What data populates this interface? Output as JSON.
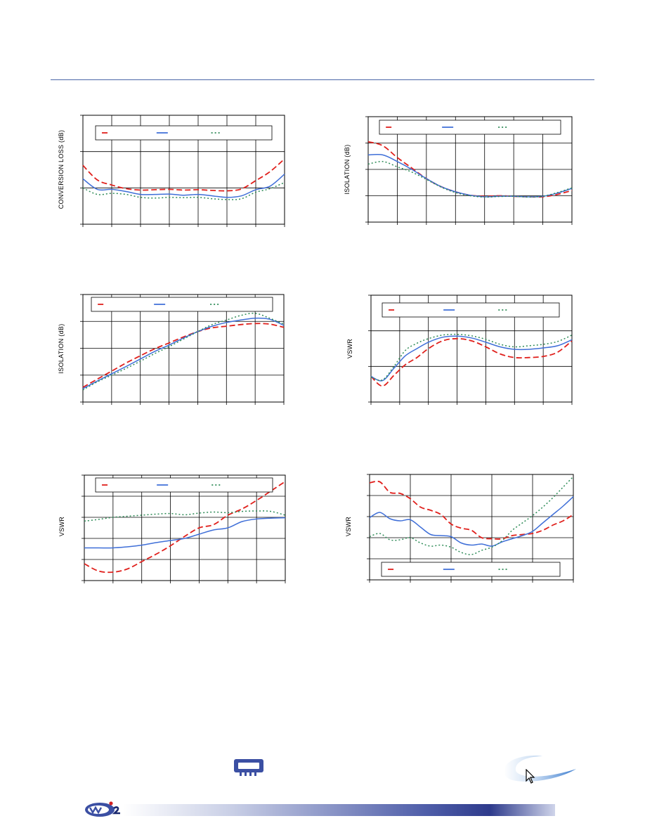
{
  "page": {
    "accent": "#4a66a8",
    "footer_band_color": "#2e3b8c",
    "logo_icon": "company-logo-icon",
    "chip_icon": "chip-package-icon",
    "swoosh_icon": "swoosh-logo-icon",
    "cursor_icon": "mouse-cursor-icon"
  },
  "chart_data": [
    {
      "type": "line",
      "ylabel": "CONVERSION LOSS (dB)",
      "grid": true,
      "legend_position": "top",
      "xlim": [
        0,
        7
      ],
      "ylim": [
        0,
        3
      ],
      "series": [
        {
          "color": "#e0201c",
          "dash": "8,4",
          "x": [
            0,
            0.5,
            1,
            1.5,
            2,
            2.5,
            3,
            3.5,
            4,
            4.5,
            5,
            5.5,
            6,
            6.5,
            7
          ],
          "y": [
            1.62,
            1.22,
            1.08,
            0.98,
            0.94,
            0.95,
            0.96,
            0.94,
            0.95,
            0.93,
            0.92,
            0.97,
            1.2,
            1.45,
            1.8
          ]
        },
        {
          "color": "#3f6fd8",
          "dash": "",
          "x": [
            0,
            0.5,
            1,
            1.5,
            2,
            2.5,
            3,
            3.5,
            4,
            4.5,
            5,
            5.5,
            6,
            6.5,
            7
          ],
          "y": [
            1.25,
            0.96,
            0.96,
            0.9,
            0.82,
            0.82,
            0.83,
            0.8,
            0.82,
            0.78,
            0.74,
            0.78,
            0.95,
            1.05,
            1.38
          ]
        },
        {
          "color": "#2e8b57",
          "dash": "2,3",
          "x": [
            0,
            0.5,
            1,
            1.5,
            2,
            2.5,
            3,
            3.5,
            4,
            4.5,
            5,
            5.5,
            6,
            6.5,
            7
          ],
          "y": [
            1.0,
            0.82,
            0.85,
            0.82,
            0.74,
            0.72,
            0.74,
            0.73,
            0.74,
            0.7,
            0.68,
            0.7,
            0.88,
            0.98,
            1.15
          ]
        }
      ]
    },
    {
      "type": "line",
      "ylabel": "ISOLATION (dB)",
      "grid": true,
      "legend_position": "top",
      "xlim": [
        0,
        7
      ],
      "ylim": [
        0,
        4
      ],
      "series": [
        {
          "color": "#e0201c",
          "dash": "8,4",
          "x": [
            0,
            0.5,
            1,
            1.5,
            2,
            2.5,
            3,
            3.5,
            4,
            4.5,
            5,
            5.5,
            6,
            6.5,
            7
          ],
          "y": [
            3.05,
            2.9,
            2.45,
            2.05,
            1.65,
            1.35,
            1.15,
            1.02,
            0.98,
            1.0,
            0.98,
            0.96,
            0.96,
            1.05,
            1.2
          ]
        },
        {
          "color": "#3f6fd8",
          "dash": "",
          "x": [
            0,
            0.5,
            1,
            1.5,
            2,
            2.5,
            3,
            3.5,
            4,
            4.5,
            5,
            5.5,
            6,
            6.5,
            7
          ],
          "y": [
            2.55,
            2.55,
            2.3,
            2.0,
            1.65,
            1.35,
            1.15,
            1.02,
            0.96,
            0.98,
            0.98,
            0.96,
            0.98,
            1.1,
            1.28
          ]
        },
        {
          "color": "#2e8b57",
          "dash": "2,3",
          "x": [
            0,
            0.5,
            1,
            1.5,
            2,
            2.5,
            3,
            3.5,
            4,
            4.5,
            5,
            5.5,
            6,
            6.5,
            7
          ],
          "y": [
            2.2,
            2.3,
            2.1,
            1.9,
            1.62,
            1.33,
            1.12,
            1.0,
            0.95,
            0.97,
            0.98,
            0.95,
            0.98,
            1.12,
            1.3
          ]
        }
      ]
    },
    {
      "type": "line",
      "ylabel": "ISOLATION (dB)",
      "grid": true,
      "legend_position": "top",
      "xlim": [
        0,
        7
      ],
      "ylim": [
        0,
        4
      ],
      "series": [
        {
          "color": "#e0201c",
          "dash": "8,4",
          "x": [
            0,
            0.5,
            1,
            1.5,
            2,
            2.5,
            3,
            3.5,
            4,
            4.5,
            5,
            5.5,
            6,
            6.5,
            7
          ],
          "y": [
            0.55,
            0.85,
            1.15,
            1.45,
            1.72,
            1.98,
            2.2,
            2.42,
            2.62,
            2.76,
            2.82,
            2.88,
            2.92,
            2.9,
            2.78
          ]
        },
        {
          "color": "#3f6fd8",
          "dash": "",
          "x": [
            0,
            0.5,
            1,
            1.5,
            2,
            2.5,
            3,
            3.5,
            4,
            4.5,
            5,
            5.5,
            6,
            6.5,
            7
          ],
          "y": [
            0.5,
            0.78,
            1.05,
            1.32,
            1.6,
            1.88,
            2.12,
            2.38,
            2.62,
            2.82,
            2.96,
            3.05,
            3.12,
            3.08,
            2.85
          ]
        },
        {
          "color": "#2e8b57",
          "dash": "2,3",
          "x": [
            0,
            0.5,
            1,
            1.5,
            2,
            2.5,
            3,
            3.5,
            4,
            4.5,
            5,
            5.5,
            6,
            6.5,
            7
          ],
          "y": [
            0.45,
            0.75,
            1.0,
            1.25,
            1.52,
            1.8,
            2.06,
            2.34,
            2.62,
            2.88,
            3.05,
            3.22,
            3.3,
            3.12,
            2.9
          ]
        }
      ]
    },
    {
      "type": "line",
      "ylabel": "VSWR",
      "grid": true,
      "legend_position": "top",
      "xlim": [
        0,
        7
      ],
      "ylim": [
        0,
        3
      ],
      "series": [
        {
          "color": "#e0201c",
          "dash": "8,4",
          "x": [
            0,
            0.4,
            0.8,
            1.2,
            1.6,
            2,
            2.5,
            3,
            3.5,
            4,
            4.5,
            5,
            5.5,
            6,
            6.5,
            7
          ],
          "y": [
            0.72,
            0.45,
            0.75,
            1.05,
            1.25,
            1.5,
            1.72,
            1.78,
            1.72,
            1.55,
            1.35,
            1.25,
            1.25,
            1.28,
            1.4,
            1.72
          ]
        },
        {
          "color": "#3f6fd8",
          "dash": "",
          "x": [
            0,
            0.4,
            0.8,
            1.2,
            1.6,
            2,
            2.5,
            3,
            3.5,
            4,
            4.5,
            5,
            5.5,
            6,
            6.5,
            7
          ],
          "y": [
            0.72,
            0.6,
            0.95,
            1.3,
            1.5,
            1.68,
            1.82,
            1.85,
            1.8,
            1.68,
            1.55,
            1.48,
            1.48,
            1.52,
            1.58,
            1.75
          ]
        },
        {
          "color": "#2e8b57",
          "dash": "2,3",
          "x": [
            0,
            0.4,
            0.8,
            1.2,
            1.6,
            2,
            2.5,
            3,
            3.5,
            4,
            4.5,
            5,
            5.5,
            6,
            6.5,
            7
          ],
          "y": [
            0.7,
            0.62,
            1.0,
            1.45,
            1.65,
            1.78,
            1.88,
            1.9,
            1.86,
            1.76,
            1.62,
            1.55,
            1.58,
            1.62,
            1.7,
            1.88
          ]
        }
      ]
    },
    {
      "type": "line",
      "ylabel": "VSWR",
      "grid": true,
      "legend_position": "top",
      "xlim": [
        0,
        7
      ],
      "ylim": [
        0,
        5
      ],
      "series": [
        {
          "color": "#e0201c",
          "dash": "8,4",
          "x": [
            0,
            0.5,
            1,
            1.5,
            2,
            2.5,
            3,
            3.5,
            4,
            4.5,
            5,
            5.5,
            6,
            6.5,
            7
          ],
          "y": [
            0.8,
            0.45,
            0.4,
            0.55,
            0.9,
            1.25,
            1.65,
            2.1,
            2.5,
            2.65,
            3.1,
            3.4,
            3.8,
            4.25,
            4.7
          ]
        },
        {
          "color": "#3f6fd8",
          "dash": "",
          "x": [
            0,
            0.5,
            1,
            1.5,
            2,
            2.5,
            3,
            3.5,
            4,
            4.5,
            5,
            5.5,
            6,
            6.5,
            7
          ],
          "y": [
            1.55,
            1.55,
            1.55,
            1.6,
            1.68,
            1.8,
            1.9,
            2.0,
            2.2,
            2.4,
            2.5,
            2.8,
            2.92,
            2.96,
            2.98
          ]
        },
        {
          "color": "#2e8b57",
          "dash": "2,3",
          "x": [
            0,
            0.5,
            1,
            1.5,
            2,
            2.5,
            3,
            3.5,
            4,
            4.5,
            5,
            5.5,
            6,
            6.5,
            7
          ],
          "y": [
            2.82,
            2.9,
            3.0,
            3.05,
            3.1,
            3.15,
            3.18,
            3.12,
            3.2,
            3.25,
            3.22,
            3.28,
            3.3,
            3.28,
            3.1
          ]
        }
      ]
    },
    {
      "type": "line",
      "ylabel": "VSWR",
      "grid": true,
      "legend_position": "bottom",
      "xlim": [
        0,
        5
      ],
      "ylim": [
        0,
        5
      ],
      "series": [
        {
          "color": "#e0201c",
          "dash": "8,4",
          "x": [
            0,
            0.25,
            0.5,
            0.75,
            1,
            1.25,
            1.5,
            1.75,
            2,
            2.25,
            2.5,
            2.75,
            3,
            3.25,
            3.5,
            3.75,
            4,
            4.25,
            4.5,
            4.75,
            5
          ],
          "y": [
            4.6,
            4.65,
            4.15,
            4.1,
            3.85,
            3.45,
            3.3,
            3.1,
            2.65,
            2.45,
            2.35,
            2.0,
            1.95,
            1.95,
            2.1,
            2.15,
            2.2,
            2.35,
            2.6,
            2.8,
            3.1
          ]
        },
        {
          "color": "#3f6fd8",
          "dash": "",
          "x": [
            0,
            0.25,
            0.5,
            0.75,
            1,
            1.25,
            1.5,
            1.75,
            2,
            2.25,
            2.5,
            2.75,
            3,
            3.25,
            3.5,
            3.75,
            4,
            4.25,
            4.5,
            4.75,
            5
          ],
          "y": [
            2.95,
            3.2,
            2.9,
            2.8,
            2.85,
            2.5,
            2.15,
            2.1,
            2.05,
            1.75,
            1.65,
            1.7,
            1.6,
            1.8,
            1.95,
            2.1,
            2.3,
            2.7,
            3.1,
            3.5,
            3.95
          ]
        },
        {
          "color": "#2e8b57",
          "dash": "2,3",
          "x": [
            0,
            0.25,
            0.5,
            0.75,
            1,
            1.25,
            1.5,
            1.75,
            2,
            2.25,
            2.5,
            2.75,
            3,
            3.25,
            3.5,
            3.75,
            4,
            4.25,
            4.5,
            4.75,
            5
          ],
          "y": [
            2.05,
            2.2,
            1.9,
            1.9,
            2.0,
            1.75,
            1.6,
            1.65,
            1.55,
            1.3,
            1.2,
            1.4,
            1.55,
            1.85,
            2.35,
            2.7,
            3.05,
            3.45,
            3.9,
            4.4,
            4.9
          ]
        }
      ]
    }
  ]
}
